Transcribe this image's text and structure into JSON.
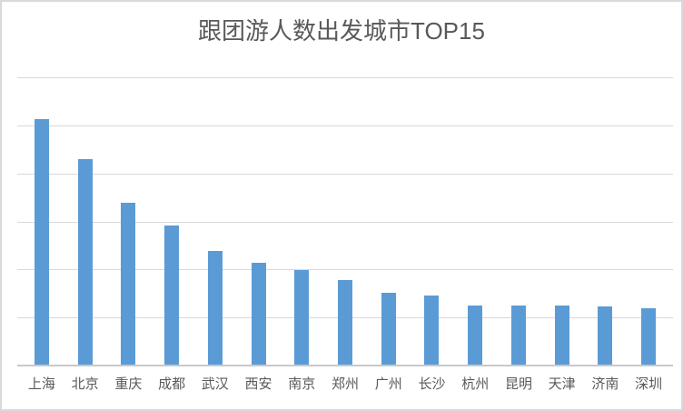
{
  "colors": {
    "bar_fill": "#5b9bd5",
    "gridline": "#d9d9d9",
    "axis_line": "#c9c9c9",
    "title_text": "#595959",
    "label_text": "#595959",
    "frame_border": "#d9d9d9",
    "background": "#ffffff"
  },
  "chart_data": {
    "type": "bar",
    "title": "跟团游人数出发城市TOP15",
    "categories": [
      "上海",
      "北京",
      "重庆",
      "成都",
      "武汉",
      "西安",
      "南京",
      "郑州",
      "广州",
      "长沙",
      "杭州",
      "昆明",
      "天津",
      "济南",
      "深圳"
    ],
    "values": [
      5.13,
      4.3,
      3.39,
      2.91,
      2.38,
      2.13,
      1.99,
      1.78,
      1.51,
      1.46,
      1.25,
      1.25,
      1.25,
      1.24,
      1.19
    ],
    "xlabel": "",
    "ylabel": "",
    "ylim": [
      0,
      6
    ],
    "gridline_interval": 1,
    "grid": true,
    "y_tick_labels_visible": false,
    "legend_position": "none",
    "note": "y-axis has no visible tick labels; values are estimated in gridline units (1 unit per gridline interval, 6 intervals total)"
  }
}
